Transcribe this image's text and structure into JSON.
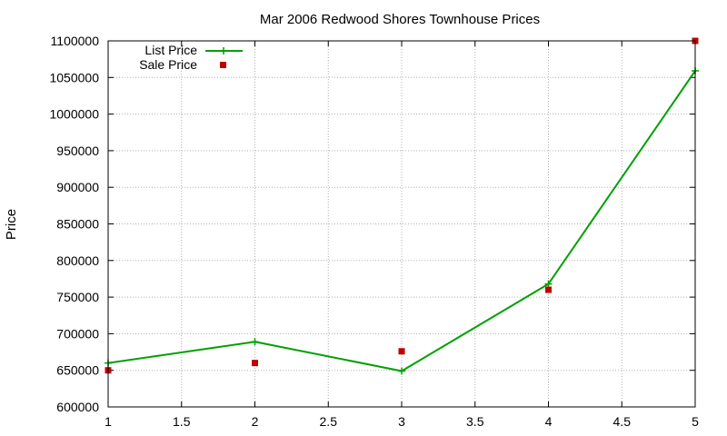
{
  "chart_data": {
    "type": "line",
    "title": "Mar 2006 Redwood Shores Townhouse Prices",
    "xlabel": "",
    "ylabel": "Price",
    "xlim": [
      1,
      5
    ],
    "ylim": [
      600000,
      1100000
    ],
    "xticks": [
      1,
      1.5,
      2,
      2.5,
      3,
      3.5,
      4,
      4.5,
      5
    ],
    "xtick_labels": [
      "1",
      "1.5",
      "2",
      "2.5",
      "3",
      "3.5",
      "4",
      "4.5",
      "5"
    ],
    "yticks": [
      600000,
      650000,
      700000,
      750000,
      800000,
      850000,
      900000,
      950000,
      1000000,
      1050000,
      1100000
    ],
    "ytick_labels": [
      "600000",
      "650000",
      "700000",
      "750000",
      "800000",
      "850000",
      "900000",
      "950000",
      "1000000",
      "1050000",
      "1100000"
    ],
    "grid": true,
    "legend_position": "top-left",
    "series": [
      {
        "name": "List Price",
        "style": "line+cross",
        "color": "#00a000",
        "x": [
          1,
          2,
          3,
          4,
          5
        ],
        "y": [
          660000,
          689000,
          649000,
          768000,
          1059000
        ]
      },
      {
        "name": "Sale Price",
        "style": "square-points",
        "color": "#c00000",
        "x": [
          1,
          2,
          3,
          4,
          5
        ],
        "y": [
          650000,
          660000,
          676000,
          760000,
          1100000
        ]
      }
    ]
  }
}
